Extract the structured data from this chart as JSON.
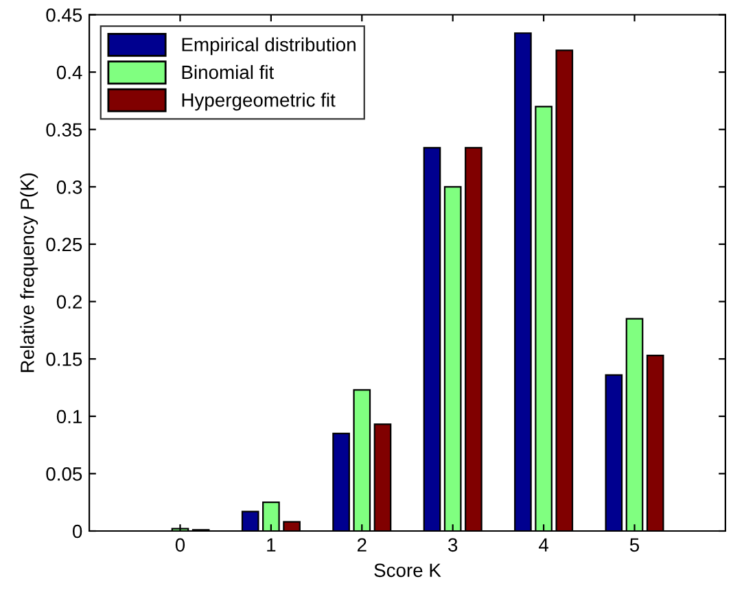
{
  "chart_data": {
    "type": "bar",
    "xlabel": "Score K",
    "ylabel": "Relative frequency P(K)",
    "categories": [
      "0",
      "1",
      "2",
      "3",
      "4",
      "5"
    ],
    "series": [
      {
        "name": "Empirical distribution",
        "color": "#00008f",
        "values": [
          0,
          0.017,
          0.085,
          0.334,
          0.434,
          0.136
        ]
      },
      {
        "name": "Binomial fit",
        "color": "#80ff80",
        "values": [
          0.002,
          0.025,
          0.123,
          0.3,
          0.37,
          0.185
        ]
      },
      {
        "name": "Hypergeometric fit",
        "color": "#800000",
        "values": [
          0.001,
          0.008,
          0.093,
          0.334,
          0.419,
          0.153
        ]
      }
    ],
    "ylim": [
      0,
      0.45
    ],
    "yticks": [
      0,
      0.05,
      0.1,
      0.15,
      0.2,
      0.25,
      0.3,
      0.35,
      0.4,
      0.45
    ],
    "grid": false,
    "legend": "top left"
  }
}
